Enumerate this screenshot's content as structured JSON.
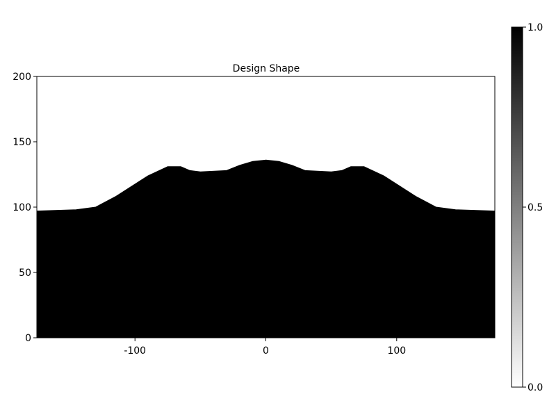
{
  "chart_data": {
    "type": "heatmap",
    "title": "Design Shape",
    "xlabel": "",
    "ylabel": "",
    "xlim": [
      -175,
      175
    ],
    "ylim": [
      0,
      200
    ],
    "x_ticks": [
      -100,
      0,
      100
    ],
    "x_tick_labels": [
      "-100",
      "0",
      "100"
    ],
    "y_ticks": [
      0,
      50,
      100,
      150,
      200
    ],
    "y_tick_labels": [
      "0",
      "50",
      "100",
      "150",
      "200"
    ],
    "grid": false,
    "fill_value": 1.0,
    "boundary": {
      "x": [
        -175,
        -145,
        -130,
        -115,
        -90,
        -75,
        -65,
        -58,
        -50,
        -30,
        -20,
        -10,
        0,
        10,
        20,
        30,
        50,
        58,
        65,
        75,
        90,
        115,
        130,
        145,
        175
      ],
      "y": [
        97,
        98,
        100,
        108,
        124,
        131,
        131,
        128,
        127,
        128,
        132,
        135,
        136,
        135,
        132,
        128,
        127,
        128,
        131,
        131,
        124,
        108,
        100,
        98,
        97
      ]
    },
    "colorbar": {
      "range": [
        0.0,
        1.0
      ],
      "ticks": [
        0.0,
        0.5,
        1.0
      ],
      "tick_labels": [
        "0.0",
        "0.5",
        "1.0"
      ],
      "low_color": "#ffffff",
      "high_color": "#000000"
    }
  }
}
